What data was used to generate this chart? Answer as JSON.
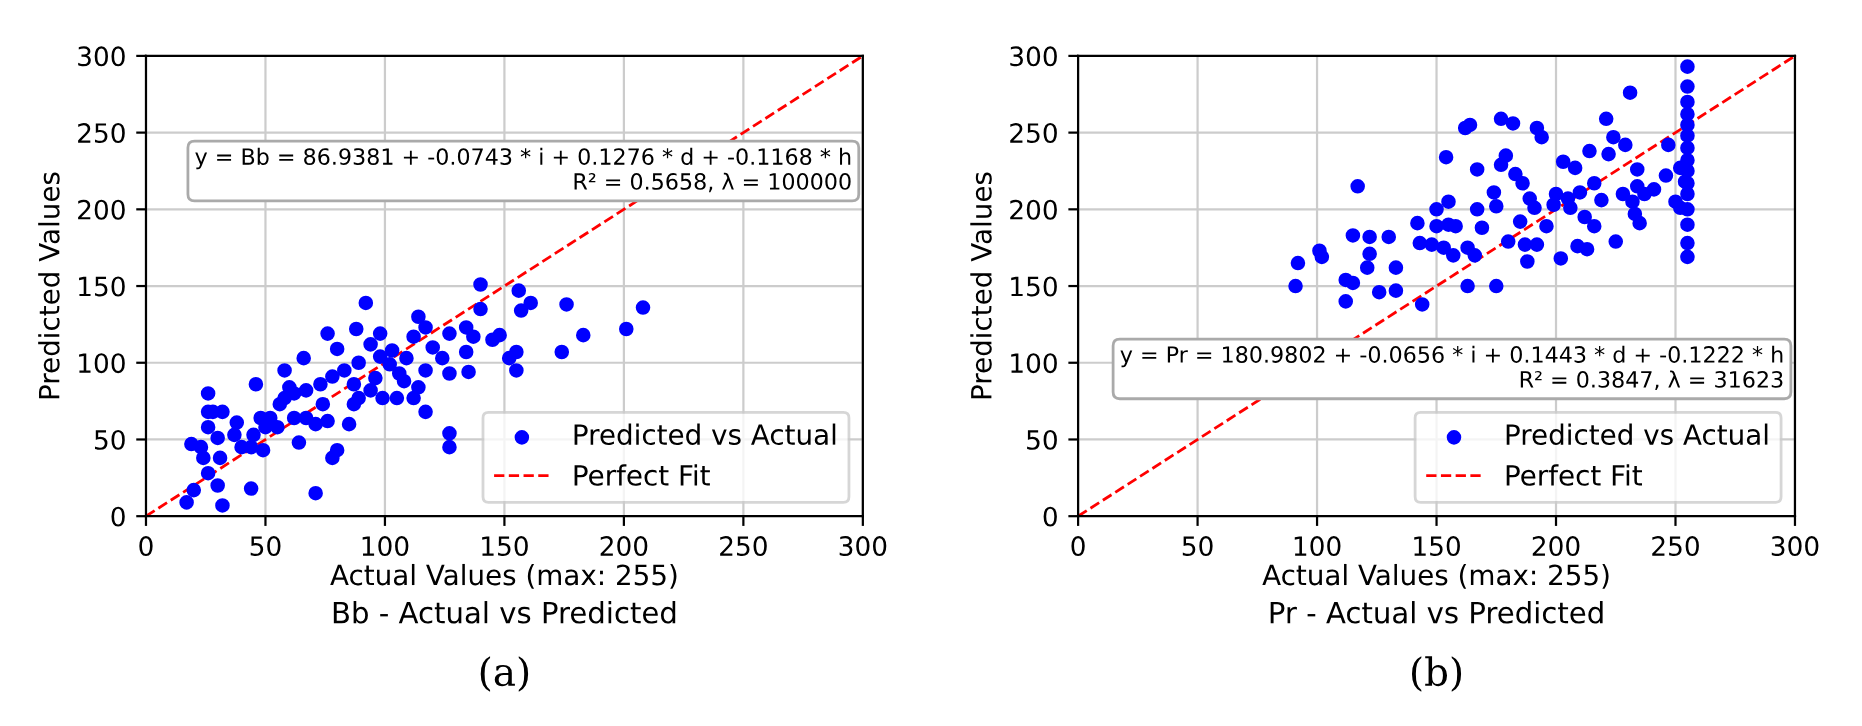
{
  "chart_data": [
    {
      "type": "scatter",
      "title": "Bb - Actual vs Predicted",
      "xlabel": "Actual Values (max: 255)",
      "ylabel": "Predicted Values",
      "xlim": [
        0,
        300
      ],
      "ylim": [
        0,
        300
      ],
      "xticks": [
        0,
        50,
        100,
        150,
        200,
        250,
        300
      ],
      "yticks": [
        0,
        50,
        100,
        150,
        200,
        250,
        300
      ],
      "grid": true,
      "legend": "bottom right",
      "annotations": [
        "y = Bb = 86.9381 + -0.0743 * i + 0.1276 * d + -0.1168 * h\nR² = 0.5658, λ = 100000",
        "(a)"
      ],
      "series": [
        {
          "name": "Predicted vs Actual",
          "color": "#0000ff",
          "marker": "circle",
          "x": [
            17,
            32,
            20,
            26,
            30,
            44,
            71,
            19,
            23,
            26,
            26,
            28,
            32,
            24,
            31,
            38,
            40,
            44,
            49,
            48,
            46,
            58,
            58,
            64,
            71,
            78,
            80,
            76,
            85,
            66,
            76,
            80,
            88,
            92,
            98,
            98,
            89,
            83,
            78,
            73,
            67,
            62,
            56,
            52,
            60,
            87,
            94,
            99,
            105,
            106,
            109,
            112,
            114,
            117,
            120,
            124,
            127,
            134,
            137,
            134,
            135,
            127,
            117,
            114,
            117,
            127,
            127,
            140,
            140,
            145,
            148,
            152,
            155,
            155,
            156,
            157,
            161,
            174,
            176,
            183,
            201,
            208,
            94,
            102,
            112,
            103,
            108,
            96,
            89,
            87,
            74,
            67,
            62,
            55,
            50,
            45,
            37,
            30,
            26
          ],
          "values": [
            9,
            7,
            17,
            28,
            20,
            18,
            15,
            47,
            45,
            58,
            68,
            68,
            68,
            38,
            38,
            61,
            45,
            45,
            43,
            64,
            86,
            95,
            77,
            48,
            60,
            38,
            43,
            62,
            60,
            103,
            119,
            109,
            122,
            139,
            119,
            104,
            100,
            95,
            91,
            86,
            82,
            80,
            73,
            64,
            84,
            86,
            82,
            77,
            77,
            93,
            103,
            117,
            130,
            123,
            110,
            103,
            119,
            123,
            117,
            107,
            94,
            93,
            95,
            84,
            68,
            54,
            45,
            151,
            135,
            115,
            118,
            103,
            107,
            95,
            147,
            134,
            139,
            107,
            138,
            118,
            122,
            136,
            112,
            99,
            77,
            108,
            88,
            90,
            77,
            73,
            73,
            64,
            64,
            58,
            58,
            53,
            53,
            51,
            80
          ]
        },
        {
          "name": "Perfect Fit",
          "type": "line",
          "color": "#ff0000",
          "line_style": "dashed",
          "marker": "none",
          "x": [
            0,
            300
          ],
          "values": [
            0,
            300
          ]
        }
      ]
    },
    {
      "type": "scatter",
      "title": "Pr - Actual vs Predicted",
      "xlabel": "Actual Values (max: 255)",
      "ylabel": "Predicted Values",
      "xlim": [
        0,
        300
      ],
      "ylim": [
        0,
        300
      ],
      "xticks": [
        0,
        50,
        100,
        150,
        200,
        250,
        300
      ],
      "yticks": [
        0,
        50,
        100,
        150,
        200,
        250,
        300
      ],
      "grid": true,
      "legend": "bottom right",
      "annotations": [
        "y = Pr = 180.9802 + -0.0656 * i + 0.1443 * d + -0.1222 * h\nR² = 0.3847, λ = 31623",
        "(b)"
      ],
      "series": [
        {
          "name": "Predicted vs Actual",
          "color": "#0000ff",
          "marker": "circle",
          "x": [
            255,
            255,
            255,
            255,
            255,
            255,
            255,
            255,
            255,
            255,
            255,
            255,
            255,
            255,
            255,
            91,
            92,
            101,
            102,
            112,
            112,
            115,
            115,
            117,
            122,
            122,
            121,
            126,
            130,
            133,
            133,
            142,
            143,
            144,
            148,
            150,
            150,
            153,
            154,
            155,
            155,
            157,
            158,
            162,
            164,
            163,
            163,
            166,
            167,
            167,
            169,
            174,
            175,
            175,
            177,
            177,
            179,
            180,
            182,
            183,
            185,
            186,
            187,
            188,
            189,
            191,
            192,
            192,
            194,
            196,
            199,
            200,
            202,
            203,
            205,
            206,
            208,
            210,
            209,
            212,
            213,
            214,
            216,
            216,
            219,
            221,
            222,
            224,
            225,
            228,
            229,
            231,
            232,
            233,
            234,
            234,
            235,
            237,
            241,
            247,
            246,
            250,
            252,
            254,
            252
          ],
          "values": [
            293,
            280,
            270,
            262,
            255,
            248,
            240,
            232,
            225,
            217,
            210,
            200,
            190,
            178,
            169,
            150,
            165,
            173,
            169,
            154,
            140,
            152,
            183,
            215,
            182,
            171,
            162,
            146,
            182,
            162,
            147,
            191,
            178,
            138,
            177,
            200,
            189,
            175,
            234,
            205,
            190,
            170,
            189,
            253,
            255,
            175,
            150,
            170,
            226,
            200,
            188,
            211,
            150,
            202,
            259,
            229,
            235,
            179,
            256,
            223,
            192,
            217,
            177,
            166,
            207,
            201,
            253,
            177,
            247,
            189,
            203,
            210,
            168,
            231,
            207,
            201,
            227,
            211,
            176,
            195,
            174,
            238,
            217,
            189,
            206,
            259,
            236,
            247,
            179,
            210,
            242,
            276,
            205,
            197,
            226,
            215,
            191,
            210,
            213,
            242,
            222,
            205,
            227,
            218,
            201
          ]
        },
        {
          "name": "Perfect Fit",
          "type": "line",
          "color": "#ff0000",
          "line_style": "dashed",
          "marker": "none",
          "x": [
            0,
            300
          ],
          "values": [
            0,
            300
          ]
        }
      ]
    }
  ]
}
